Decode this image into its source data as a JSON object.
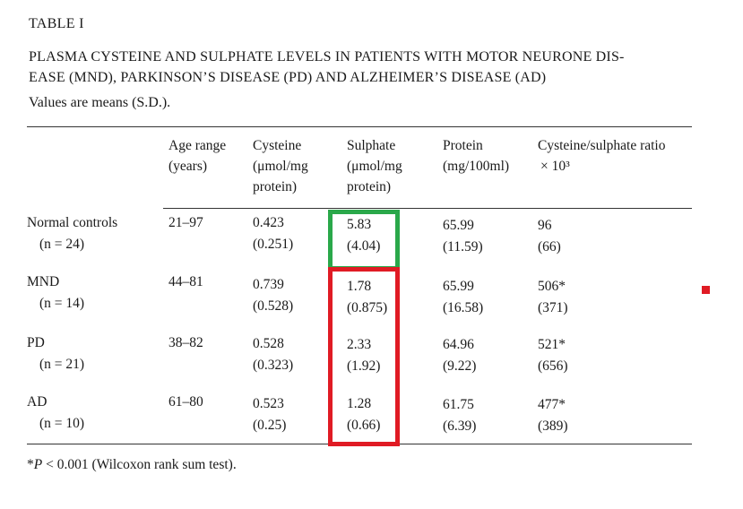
{
  "table_label": "TABLE I",
  "title_line1": "PLASMA CYSTEINE AND SULPHATE LEVELS IN PATIENTS WITH MOTOR NEURONE DIS-",
  "title_line2": "EASE (MND), PARKINSON’S DISEASE (PD) AND ALZHEIMER’S DISEASE (AD)",
  "caption": "Values are means (S.D.).",
  "headers": {
    "age": [
      "Age range",
      "(years)"
    ],
    "cysteine": [
      "Cysteine",
      "(μmol/mg",
      "protein)"
    ],
    "sulphate": [
      "Sulphate",
      "(μmol/mg",
      "protein)"
    ],
    "protein": [
      "Protein",
      "(mg/100ml)"
    ],
    "ratio": [
      "Cysteine/sulphate ratio",
      "× 10³"
    ]
  },
  "rows": [
    {
      "group": "Normal controls",
      "n": "(n = 24)",
      "age": "21–97",
      "cysteine": "0.423",
      "cysteine_sd": "(0.251)",
      "sulphate": "5.83",
      "sulphate_sd": "(4.04)",
      "protein": "65.99",
      "protein_sd": "(11.59)",
      "ratio": "96",
      "ratio_sd": "(66)"
    },
    {
      "group": "MND",
      "n": "(n = 14)",
      "age": "44–81",
      "cysteine": "0.739",
      "cysteine_sd": "(0.528)",
      "sulphate": "1.78",
      "sulphate_sd": "(0.875)",
      "protein": "65.99",
      "protein_sd": "(16.58)",
      "ratio": "506*",
      "ratio_sd": "(371)"
    },
    {
      "group": "PD",
      "n": "(n = 21)",
      "age": "38–82",
      "cysteine": "0.528",
      "cysteine_sd": "(0.323)",
      "sulphate": "2.33",
      "sulphate_sd": "(1.92)",
      "protein": "64.96",
      "protein_sd": "(9.22)",
      "ratio": "521*",
      "ratio_sd": "(656)"
    },
    {
      "group": "AD",
      "n": "(n = 10)",
      "age": "61–80",
      "cysteine": "0.523",
      "cysteine_sd": "(0.25)",
      "sulphate": "1.28",
      "sulphate_sd": "(0.66)",
      "protein": "61.75",
      "protein_sd": "(6.39)",
      "ratio": "477*",
      "ratio_sd": "(389)"
    }
  ],
  "footnote": {
    "star": "*",
    "p": "P",
    "text": " < 0.001 (Wilcoxon rank sum test)."
  },
  "highlight_colors": {
    "green": "#2aa84a",
    "red": "#e01b24"
  }
}
